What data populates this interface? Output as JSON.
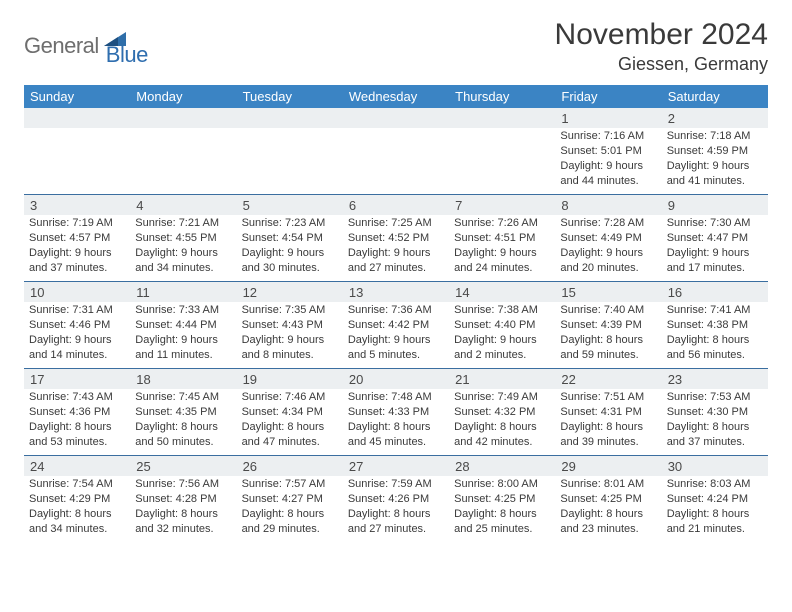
{
  "brand": {
    "general": "General",
    "blue": "Blue",
    "shape_color": "#2f6ea9"
  },
  "header": {
    "title": "November 2024",
    "location": "Giessen, Germany"
  },
  "colors": {
    "header_bg": "#3b84c4",
    "header_text": "#ffffff",
    "band_bg": "#eceff1",
    "rule": "#3a6ea0"
  },
  "dayNames": [
    "Sunday",
    "Monday",
    "Tuesday",
    "Wednesday",
    "Thursday",
    "Friday",
    "Saturday"
  ],
  "weeks": [
    [
      {
        "day": "",
        "sunrise": "",
        "sunset": "",
        "daylight": ""
      },
      {
        "day": "",
        "sunrise": "",
        "sunset": "",
        "daylight": ""
      },
      {
        "day": "",
        "sunrise": "",
        "sunset": "",
        "daylight": ""
      },
      {
        "day": "",
        "sunrise": "",
        "sunset": "",
        "daylight": ""
      },
      {
        "day": "",
        "sunrise": "",
        "sunset": "",
        "daylight": ""
      },
      {
        "day": "1",
        "sunrise": "Sunrise: 7:16 AM",
        "sunset": "Sunset: 5:01 PM",
        "daylight": "Daylight: 9 hours and 44 minutes."
      },
      {
        "day": "2",
        "sunrise": "Sunrise: 7:18 AM",
        "sunset": "Sunset: 4:59 PM",
        "daylight": "Daylight: 9 hours and 41 minutes."
      }
    ],
    [
      {
        "day": "3",
        "sunrise": "Sunrise: 7:19 AM",
        "sunset": "Sunset: 4:57 PM",
        "daylight": "Daylight: 9 hours and 37 minutes."
      },
      {
        "day": "4",
        "sunrise": "Sunrise: 7:21 AM",
        "sunset": "Sunset: 4:55 PM",
        "daylight": "Daylight: 9 hours and 34 minutes."
      },
      {
        "day": "5",
        "sunrise": "Sunrise: 7:23 AM",
        "sunset": "Sunset: 4:54 PM",
        "daylight": "Daylight: 9 hours and 30 minutes."
      },
      {
        "day": "6",
        "sunrise": "Sunrise: 7:25 AM",
        "sunset": "Sunset: 4:52 PM",
        "daylight": "Daylight: 9 hours and 27 minutes."
      },
      {
        "day": "7",
        "sunrise": "Sunrise: 7:26 AM",
        "sunset": "Sunset: 4:51 PM",
        "daylight": "Daylight: 9 hours and 24 minutes."
      },
      {
        "day": "8",
        "sunrise": "Sunrise: 7:28 AM",
        "sunset": "Sunset: 4:49 PM",
        "daylight": "Daylight: 9 hours and 20 minutes."
      },
      {
        "day": "9",
        "sunrise": "Sunrise: 7:30 AM",
        "sunset": "Sunset: 4:47 PM",
        "daylight": "Daylight: 9 hours and 17 minutes."
      }
    ],
    [
      {
        "day": "10",
        "sunrise": "Sunrise: 7:31 AM",
        "sunset": "Sunset: 4:46 PM",
        "daylight": "Daylight: 9 hours and 14 minutes."
      },
      {
        "day": "11",
        "sunrise": "Sunrise: 7:33 AM",
        "sunset": "Sunset: 4:44 PM",
        "daylight": "Daylight: 9 hours and 11 minutes."
      },
      {
        "day": "12",
        "sunrise": "Sunrise: 7:35 AM",
        "sunset": "Sunset: 4:43 PM",
        "daylight": "Daylight: 9 hours and 8 minutes."
      },
      {
        "day": "13",
        "sunrise": "Sunrise: 7:36 AM",
        "sunset": "Sunset: 4:42 PM",
        "daylight": "Daylight: 9 hours and 5 minutes."
      },
      {
        "day": "14",
        "sunrise": "Sunrise: 7:38 AM",
        "sunset": "Sunset: 4:40 PM",
        "daylight": "Daylight: 9 hours and 2 minutes."
      },
      {
        "day": "15",
        "sunrise": "Sunrise: 7:40 AM",
        "sunset": "Sunset: 4:39 PM",
        "daylight": "Daylight: 8 hours and 59 minutes."
      },
      {
        "day": "16",
        "sunrise": "Sunrise: 7:41 AM",
        "sunset": "Sunset: 4:38 PM",
        "daylight": "Daylight: 8 hours and 56 minutes."
      }
    ],
    [
      {
        "day": "17",
        "sunrise": "Sunrise: 7:43 AM",
        "sunset": "Sunset: 4:36 PM",
        "daylight": "Daylight: 8 hours and 53 minutes."
      },
      {
        "day": "18",
        "sunrise": "Sunrise: 7:45 AM",
        "sunset": "Sunset: 4:35 PM",
        "daylight": "Daylight: 8 hours and 50 minutes."
      },
      {
        "day": "19",
        "sunrise": "Sunrise: 7:46 AM",
        "sunset": "Sunset: 4:34 PM",
        "daylight": "Daylight: 8 hours and 47 minutes."
      },
      {
        "day": "20",
        "sunrise": "Sunrise: 7:48 AM",
        "sunset": "Sunset: 4:33 PM",
        "daylight": "Daylight: 8 hours and 45 minutes."
      },
      {
        "day": "21",
        "sunrise": "Sunrise: 7:49 AM",
        "sunset": "Sunset: 4:32 PM",
        "daylight": "Daylight: 8 hours and 42 minutes."
      },
      {
        "day": "22",
        "sunrise": "Sunrise: 7:51 AM",
        "sunset": "Sunset: 4:31 PM",
        "daylight": "Daylight: 8 hours and 39 minutes."
      },
      {
        "day": "23",
        "sunrise": "Sunrise: 7:53 AM",
        "sunset": "Sunset: 4:30 PM",
        "daylight": "Daylight: 8 hours and 37 minutes."
      }
    ],
    [
      {
        "day": "24",
        "sunrise": "Sunrise: 7:54 AM",
        "sunset": "Sunset: 4:29 PM",
        "daylight": "Daylight: 8 hours and 34 minutes."
      },
      {
        "day": "25",
        "sunrise": "Sunrise: 7:56 AM",
        "sunset": "Sunset: 4:28 PM",
        "daylight": "Daylight: 8 hours and 32 minutes."
      },
      {
        "day": "26",
        "sunrise": "Sunrise: 7:57 AM",
        "sunset": "Sunset: 4:27 PM",
        "daylight": "Daylight: 8 hours and 29 minutes."
      },
      {
        "day": "27",
        "sunrise": "Sunrise: 7:59 AM",
        "sunset": "Sunset: 4:26 PM",
        "daylight": "Daylight: 8 hours and 27 minutes."
      },
      {
        "day": "28",
        "sunrise": "Sunrise: 8:00 AM",
        "sunset": "Sunset: 4:25 PM",
        "daylight": "Daylight: 8 hours and 25 minutes."
      },
      {
        "day": "29",
        "sunrise": "Sunrise: 8:01 AM",
        "sunset": "Sunset: 4:25 PM",
        "daylight": "Daylight: 8 hours and 23 minutes."
      },
      {
        "day": "30",
        "sunrise": "Sunrise: 8:03 AM",
        "sunset": "Sunset: 4:24 PM",
        "daylight": "Daylight: 8 hours and 21 minutes."
      }
    ]
  ]
}
